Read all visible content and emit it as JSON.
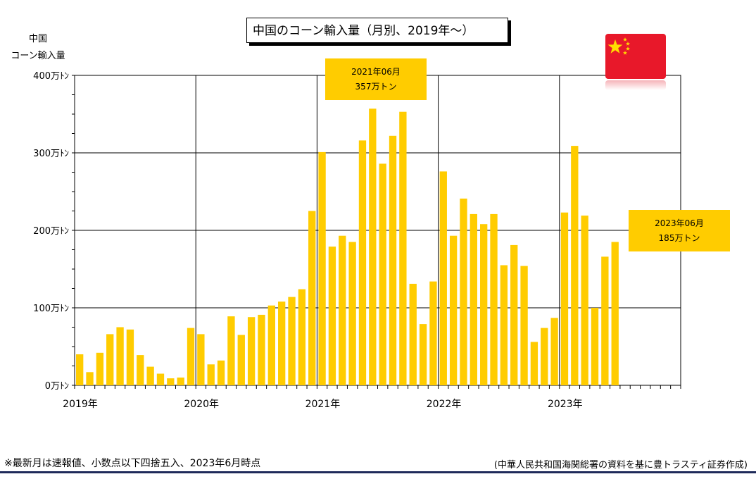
{
  "title": "中国のコーン輸入量（月別、2019年～）",
  "ylabel_line1": "中国",
  "ylabel_line2": "コーン輸入量",
  "callouts": [
    {
      "line1": "2021年06月",
      "line2": "357万トン"
    },
    {
      "line1": "2023年06月",
      "line2": "185万トン"
    }
  ],
  "footnote": "※最新月は速報値、小数点以下四捨五入、2023年6月時点",
  "source": "(中華人民共和国海関総署の資料を基に豊トラスティ証券作成)",
  "flag": "china-flag",
  "colors": {
    "bar": "#ffcc00",
    "flag": "#e8182a",
    "footer_line": "#1f2a5a"
  },
  "chart_data": {
    "type": "bar",
    "ylabel": "中国 コーン輸入量",
    "ylim": [
      0,
      400
    ],
    "unit": "万トン",
    "grid": true,
    "yticks": [
      {
        "value": 0,
        "label": "0万ﾄﾝ"
      },
      {
        "value": 100,
        "label": "100万ﾄﾝ"
      },
      {
        "value": 200,
        "label": "200万ﾄﾝ"
      },
      {
        "value": 300,
        "label": "300万ﾄﾝ"
      },
      {
        "value": 400,
        "label": "400万ﾄﾝ"
      }
    ],
    "year_labels": [
      "2019年",
      "2020年",
      "2021年",
      "2022年",
      "2023年"
    ],
    "months_total": 60,
    "categories": [
      "2019-01",
      "2019-02",
      "2019-03",
      "2019-04",
      "2019-05",
      "2019-06",
      "2019-07",
      "2019-08",
      "2019-09",
      "2019-10",
      "2019-11",
      "2019-12",
      "2020-01",
      "2020-02",
      "2020-03",
      "2020-04",
      "2020-05",
      "2020-06",
      "2020-07",
      "2020-08",
      "2020-09",
      "2020-10",
      "2020-11",
      "2020-12",
      "2021-01",
      "2021-02",
      "2021-03",
      "2021-04",
      "2021-05",
      "2021-06",
      "2021-07",
      "2021-08",
      "2021-09",
      "2021-10",
      "2021-11",
      "2021-12",
      "2022-01",
      "2022-02",
      "2022-03",
      "2022-04",
      "2022-05",
      "2022-06",
      "2022-07",
      "2022-08",
      "2022-09",
      "2022-10",
      "2022-11",
      "2022-12",
      "2023-01",
      "2023-02",
      "2023-03",
      "2023-04",
      "2023-05",
      "2023-06"
    ],
    "values": [
      40,
      17,
      42,
      66,
      75,
      72,
      39,
      24,
      15,
      9,
      10,
      74,
      66,
      27,
      32,
      89,
      65,
      88,
      91,
      103,
      108,
      114,
      124,
      225,
      301,
      179,
      193,
      185,
      316,
      357,
      286,
      322,
      353,
      131,
      79,
      134,
      276,
      193,
      241,
      221,
      208,
      221,
      155,
      181,
      154,
      56,
      74,
      87,
      223,
      309,
      219,
      100,
      166,
      185
    ]
  }
}
